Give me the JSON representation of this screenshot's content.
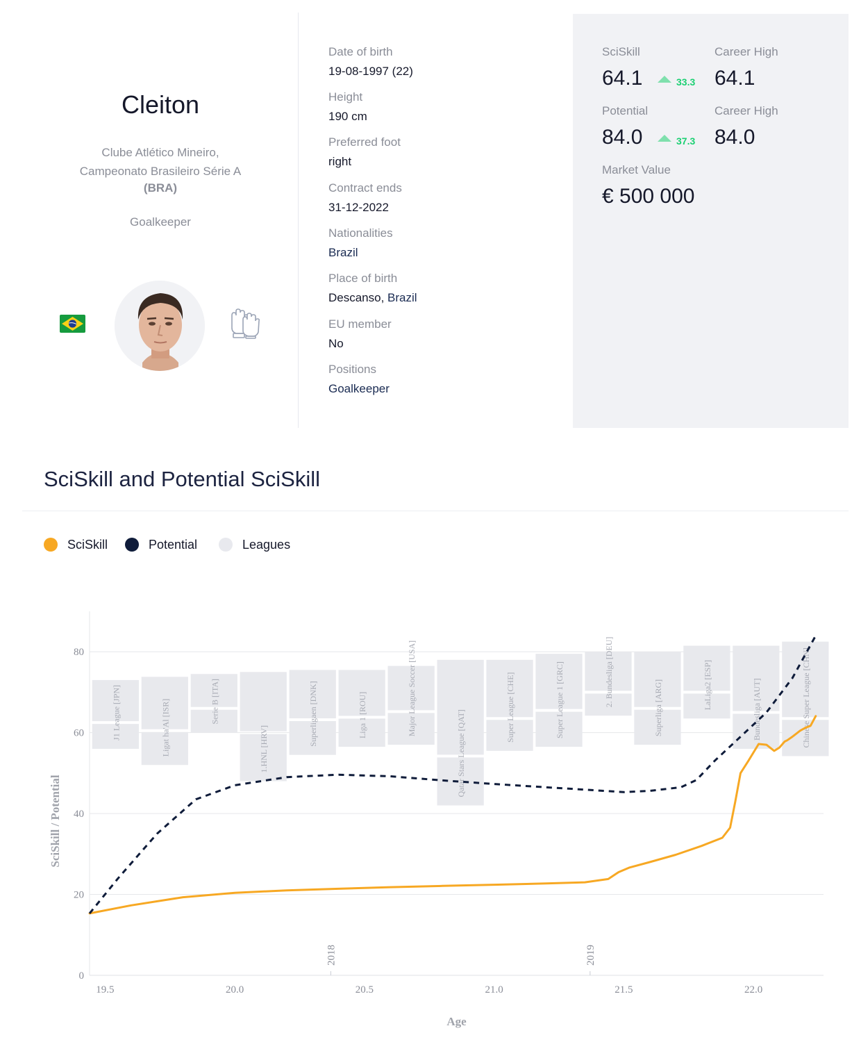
{
  "player": {
    "name": "Cleiton",
    "club_line1": "Clube Atlético Mineiro,",
    "club_line2": "Campeonato Brasileiro Série A",
    "country_code": "(BRA)",
    "position": "Goalkeeper",
    "flag_icon": "brazil-flag-icon",
    "position_icon": "goalkeeper-gloves-icon"
  },
  "info": [
    {
      "label": "Date of birth",
      "value": "19-08-1997 (22)"
    },
    {
      "label": "Height",
      "value": "190 cm"
    },
    {
      "label": "Preferred foot",
      "value": "right"
    },
    {
      "label": "Contract ends",
      "value": "31-12-2022"
    },
    {
      "label": "Nationalities",
      "value": "Brazil"
    },
    {
      "label": "Place of birth",
      "value_plain": "Descanso, ",
      "value_link": "Brazil"
    },
    {
      "label": "EU member",
      "value": "No"
    },
    {
      "label": "Positions",
      "value": "Goalkeeper"
    }
  ],
  "stats": {
    "sciskill_label": "SciSkill",
    "sciskill_value": "64.1",
    "sciskill_delta": "33.3",
    "sciskill_high_label": "Career High",
    "sciskill_high_value": "64.1",
    "potential_label": "Potential",
    "potential_value": "84.0",
    "potential_delta": "37.3",
    "potential_high_label": "Career High",
    "potential_high_value": "84.0",
    "market_label": "Market Value",
    "market_value": "€ 500 000"
  },
  "section": {
    "title": "SciSkill and Potential SciSkill"
  },
  "legend": [
    {
      "label": "SciSkill",
      "color": "#f7a823"
    },
    {
      "label": "Potential",
      "color": "#0f1c3a"
    },
    {
      "label": "Leagues",
      "color": "#e8e9ee"
    }
  ],
  "colors": {
    "sciskill": "#f7a823",
    "potential": "#0f1c3a",
    "league_box": "#e8e9ed",
    "delta": "#1bd072",
    "panel": "#f1f2f5"
  },
  "chart_data": {
    "type": "line",
    "xlabel": "Age",
    "ylabel": "SciSkill / Potential",
    "xlim": [
      19.44,
      22.27
    ],
    "ylim": [
      0,
      90
    ],
    "xticks": [
      "19.5",
      "20.0",
      "20.5",
      "21.0",
      "21.5",
      "22.0"
    ],
    "yticks": [
      "0",
      "20",
      "40",
      "60",
      "80"
    ],
    "grid": true,
    "year_markers": [
      {
        "age": 20.37,
        "label": "2018"
      },
      {
        "age": 21.37,
        "label": "2019"
      }
    ],
    "series": [
      {
        "name": "SciSkill",
        "style": "solid",
        "x": [
          19.44,
          19.6,
          19.8,
          20.0,
          20.2,
          20.4,
          20.6,
          20.8,
          21.0,
          21.2,
          21.35,
          21.44,
          21.48,
          21.52,
          21.6,
          21.7,
          21.8,
          21.88,
          21.91,
          21.93,
          21.95,
          21.98,
          22.02,
          22.05,
          22.08,
          22.1,
          22.12,
          22.13,
          22.15,
          22.18,
          22.2,
          22.22,
          22.24
        ],
        "y": [
          15.3,
          17.3,
          19.3,
          20.4,
          21.0,
          21.4,
          21.8,
          22.1,
          22.4,
          22.7,
          23.0,
          23.8,
          25.5,
          26.6,
          28.0,
          29.8,
          32.0,
          34.0,
          36.5,
          43.0,
          50.0,
          53.0,
          57.2,
          57.0,
          55.5,
          56.3,
          57.8,
          58.1,
          59.0,
          60.5,
          61.2,
          61.7,
          64.1
        ]
      },
      {
        "name": "Potential",
        "style": "dashed",
        "x": [
          19.44,
          19.55,
          19.7,
          19.85,
          20.0,
          20.2,
          20.4,
          20.6,
          20.8,
          21.0,
          21.2,
          21.4,
          21.5,
          21.6,
          21.72,
          21.78,
          21.85,
          21.95,
          22.05,
          22.15,
          22.24
        ],
        "y": [
          15.3,
          24.0,
          35.0,
          43.5,
          47.0,
          49.0,
          49.6,
          49.2,
          48.2,
          47.3,
          46.5,
          45.7,
          45.3,
          45.6,
          46.5,
          48.3,
          53.0,
          59.0,
          65.0,
          73.5,
          84.0
        ]
      }
    ],
    "leagues": [
      {
        "label": "J1 League [JPN]",
        "x0": 19.45,
        "x1": 19.63,
        "y0": 56.0,
        "y1": 73.0,
        "split": 62.5
      },
      {
        "label": "Ligat ha'Al [ISR]",
        "x0": 19.64,
        "x1": 19.82,
        "y0": 52.0,
        "y1": 73.8,
        "split": 60.5
      },
      {
        "label": "Serie B [ITA]",
        "x0": 19.83,
        "x1": 20.01,
        "y0": 60.0,
        "y1": 74.5,
        "split": 66.0
      },
      {
        "label": "1.HNL [HRV]",
        "x0": 20.02,
        "x1": 20.2,
        "y0": 48.0,
        "y1": 75.0,
        "split": 60.0
      },
      {
        "label": "Superligaen [DNK]",
        "x0": 20.21,
        "x1": 20.39,
        "y0": 54.5,
        "y1": 75.5,
        "split": 63.2
      },
      {
        "label": "Liga 1 [ROU]",
        "x0": 20.4,
        "x1": 20.58,
        "y0": 56.5,
        "y1": 75.5,
        "split": 63.8
      },
      {
        "label": "Major League Soccer [USA]",
        "x0": 20.59,
        "x1": 20.77,
        "y0": 57.0,
        "y1": 76.5,
        "split": 65.2
      },
      {
        "label": "Qatar Stars League [QAT]",
        "x0": 20.78,
        "x1": 20.96,
        "y0": 42.0,
        "y1": 78.0,
        "split": 54.2
      },
      {
        "label": "Super League [CHE]",
        "x0": 20.97,
        "x1": 21.15,
        "y0": 55.5,
        "y1": 78.0,
        "split": 63.5
      },
      {
        "label": "Super League 1 [GRC]",
        "x0": 21.16,
        "x1": 21.34,
        "y0": 56.5,
        "y1": 79.5,
        "split": 65.5
      },
      {
        "label": "2. Bundesliga [DEU]",
        "x0": 21.35,
        "x1": 21.53,
        "y0": 64.2,
        "y1": 80.0,
        "split": 70.0
      },
      {
        "label": "Superliga [ARG]",
        "x0": 21.54,
        "x1": 21.72,
        "y0": 57.0,
        "y1": 80.0,
        "split": 66.0
      },
      {
        "label": "LaLiga2 [ESP]",
        "x0": 21.73,
        "x1": 21.91,
        "y0": 63.5,
        "y1": 81.5,
        "split": 70.0
      },
      {
        "label": "Bundesliga [AUT]",
        "x0": 21.92,
        "x1": 22.1,
        "y0": 56.0,
        "y1": 81.5,
        "split": 65.0
      },
      {
        "label": "Chinese Super League [CHN]",
        "x0": 22.11,
        "x1": 22.29,
        "y0": 54.2,
        "y1": 82.5,
        "split": 63.5
      }
    ]
  }
}
